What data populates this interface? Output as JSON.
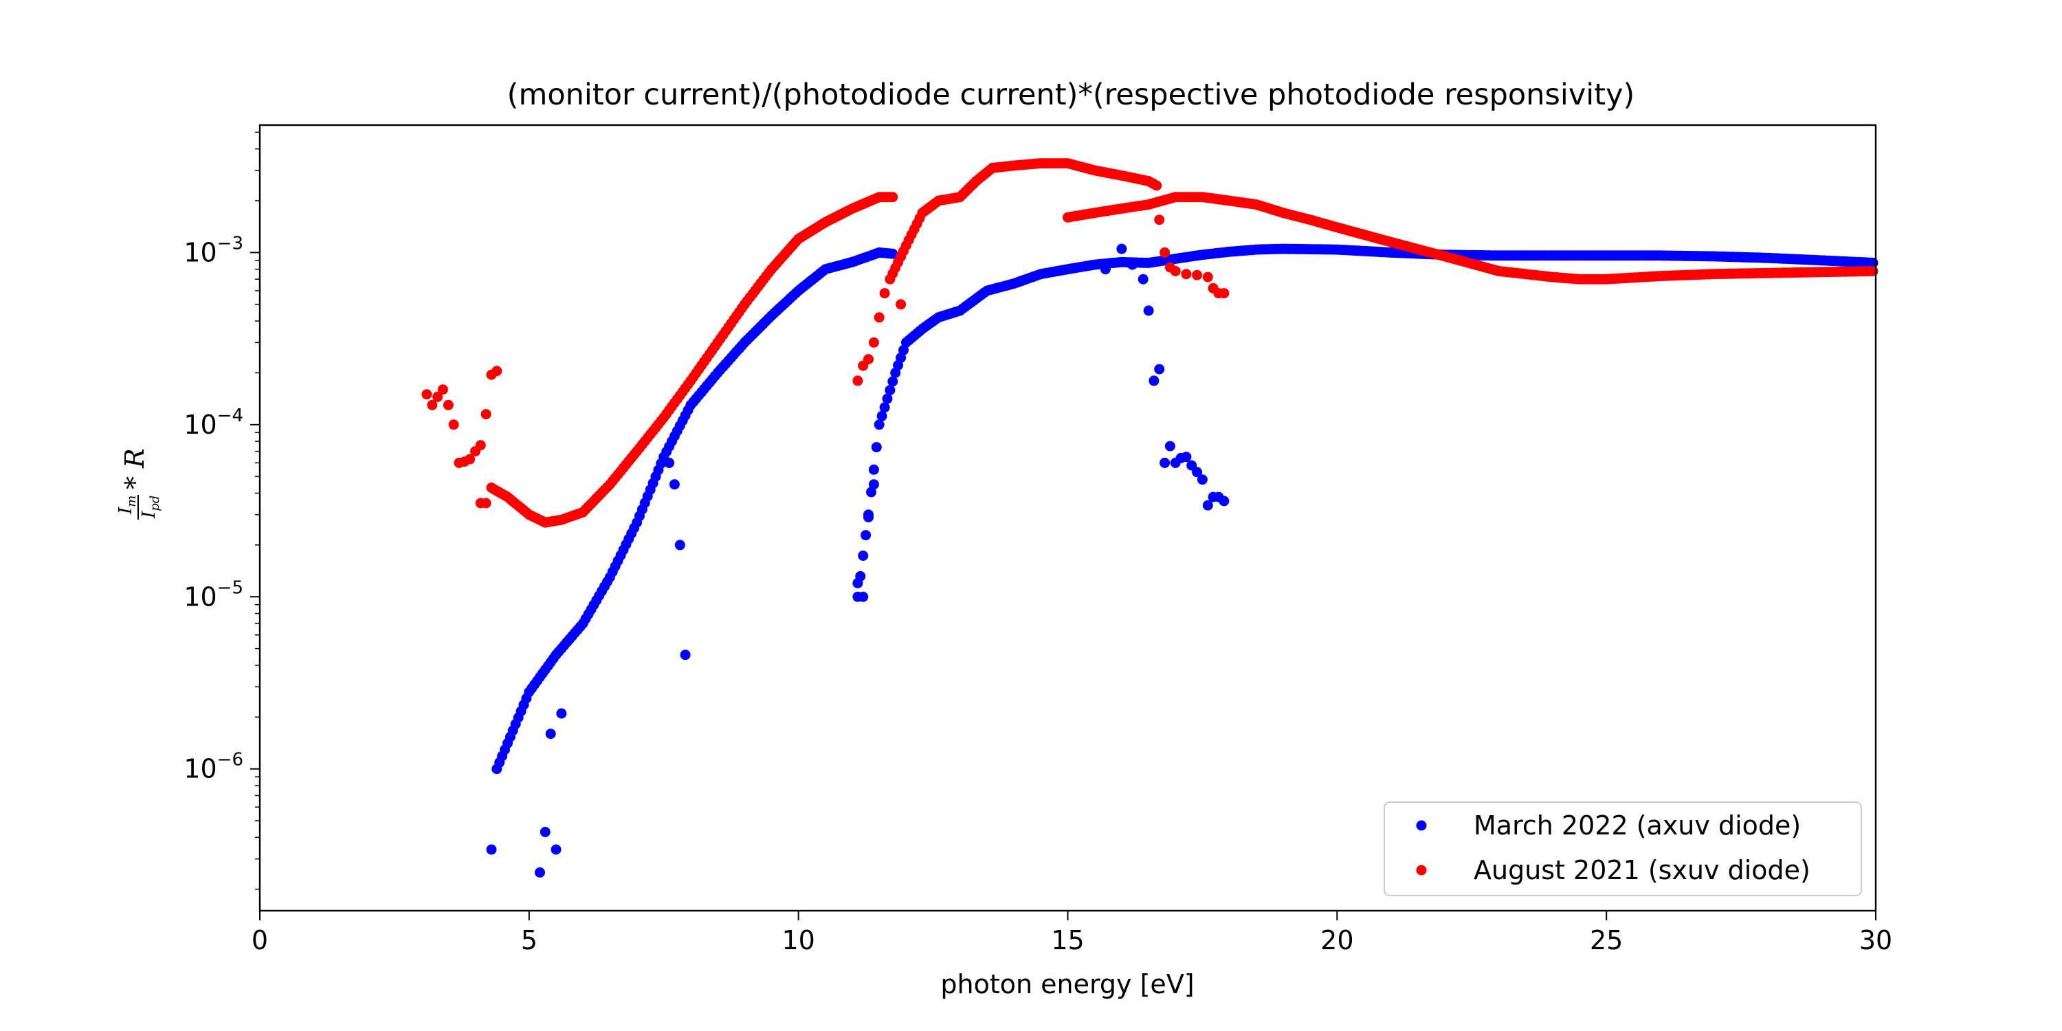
{
  "chart_data": {
    "type": "scatter",
    "title": "(monitor current)/(photodiode current)*(respective photodiode responsivity)",
    "xlabel": "photon energy [eV]",
    "ylabel": {
      "num": "I",
      "num_sub": "m",
      "den": "I",
      "den_sub": "pd",
      "tail": "* R"
    },
    "xlim": [
      0,
      30
    ],
    "ylim": [
      1.5e-07,
      0.0055
    ],
    "yscale": "log",
    "x_ticks": [
      0,
      5,
      10,
      15,
      20,
      25,
      30
    ],
    "x_tick_labels": [
      "0",
      "5",
      "10",
      "15",
      "20",
      "25",
      "30"
    ],
    "y_ticks": [
      1e-06,
      1e-05,
      0.0001,
      0.001
    ],
    "y_tick_labels": [
      {
        "base": "10",
        "exp": "−6"
      },
      {
        "base": "10",
        "exp": "−5"
      },
      {
        "base": "10",
        "exp": "−4"
      },
      {
        "base": "10",
        "exp": "−3"
      }
    ],
    "grid": false,
    "legend_position": "bottom-right",
    "series": [
      {
        "name": "March 2022 (axuv diode)",
        "color": "#0000ff",
        "segments": [
          {
            "x": [
              4.4,
              5.0,
              5.5,
              6.0,
              6.5,
              7.0,
              7.5,
              8.0,
              8.5,
              9.0,
              9.5,
              10.0,
              10.5,
              11.0,
              11.5,
              11.8
            ],
            "y": [
              1e-06,
              2.8e-06,
              4.6e-06,
              7e-06,
              1.3e-05,
              2.7e-05,
              6.5e-05,
              0.00013,
              0.0002,
              0.0003,
              0.00043,
              0.0006,
              0.0008,
              0.00088,
              0.001,
              0.00098
            ],
            "step": 0.05
          },
          {
            "x": [
              11.1,
              11.3,
              11.5,
              11.8,
              12.0,
              12.3,
              12.6,
              13.0,
              13.5,
              14.0,
              14.5,
              15.0,
              15.5,
              16.0,
              16.5,
              17.0,
              17.5,
              18.0,
              18.5,
              19.0,
              20.0,
              21.0,
              22.0,
              23.0,
              24.0,
              25.0,
              26.0,
              27.0,
              28.0,
              29.0,
              30.0
            ],
            "y": [
              1e-05,
              3e-05,
              0.0001,
              0.0002,
              0.0003,
              0.00036,
              0.00042,
              0.00046,
              0.0006,
              0.00066,
              0.00075,
              0.0008,
              0.00085,
              0.00088,
              0.00087,
              0.00092,
              0.00097,
              0.00101,
              0.00104,
              0.00105,
              0.00104,
              0.001,
              0.00097,
              0.00096,
              0.00096,
              0.00096,
              0.00096,
              0.00095,
              0.00093,
              0.0009,
              0.00087
            ],
            "step": 0.05
          }
        ],
        "points": [
          [
            4.3,
            3.4e-07
          ],
          [
            5.2,
            2.5e-07
          ],
          [
            5.3,
            4.3e-07
          ],
          [
            5.5,
            3.4e-07
          ],
          [
            5.4,
            1.6e-06
          ],
          [
            5.6,
            2.1e-06
          ],
          [
            7.8,
            2e-05
          ],
          [
            7.9,
            4.6e-06
          ],
          [
            7.7,
            4.5e-05
          ],
          [
            7.6,
            6e-05
          ],
          [
            11.1,
            1.2e-05
          ],
          [
            11.2,
            1e-05
          ],
          [
            11.3,
            2.9e-05
          ],
          [
            11.4,
            4.5e-05
          ],
          [
            15.7,
            0.0008
          ],
          [
            16.0,
            0.00105
          ],
          [
            16.2,
            0.00085
          ],
          [
            16.4,
            0.0007
          ],
          [
            16.5,
            0.00046
          ],
          [
            16.6,
            0.00018
          ],
          [
            16.7,
            0.00021
          ],
          [
            16.8,
            6e-05
          ],
          [
            16.9,
            7.5e-05
          ],
          [
            17.0,
            6e-05
          ],
          [
            17.1,
            6.4e-05
          ],
          [
            17.2,
            6.5e-05
          ],
          [
            17.3,
            5.8e-05
          ],
          [
            17.4,
            5.3e-05
          ],
          [
            17.5,
            4.8e-05
          ],
          [
            17.6,
            3.4e-05
          ],
          [
            17.7,
            3.8e-05
          ],
          [
            17.8,
            3.8e-05
          ],
          [
            17.9,
            3.6e-05
          ]
        ]
      },
      {
        "name": "August 2021 (sxuv diode)",
        "color": "#ff0000",
        "segments": [
          {
            "x": [
              4.3,
              4.6,
              5.0,
              5.3,
              5.6,
              6.0,
              6.5,
              7.0,
              7.5,
              8.0,
              8.5,
              9.0,
              9.5,
              10.0,
              10.5,
              11.0,
              11.5,
              11.8
            ],
            "y": [
              4.3e-05,
              3.8e-05,
              3e-05,
              2.7e-05,
              2.8e-05,
              3.1e-05,
              4.5e-05,
              7e-05,
              0.00011,
              0.00018,
              0.0003,
              0.0005,
              0.0008,
              0.0012,
              0.0015,
              0.0018,
              0.0021,
              0.0021
            ],
            "step": 0.05
          },
          {
            "x": [
              11.7,
              12.0,
              12.3,
              12.6,
              13.0,
              13.3,
              13.6,
              14.0,
              14.5,
              15.0,
              15.5,
              16.0,
              16.5,
              16.7
            ],
            "y": [
              0.0007,
              0.0011,
              0.0017,
              0.002,
              0.0021,
              0.0026,
              0.0031,
              0.0032,
              0.0033,
              0.0033,
              0.003,
              0.0028,
              0.0026,
              0.0024
            ],
            "step": 0.05
          },
          {
            "x": [
              15.0,
              15.5,
              16.0,
              16.5,
              17.0,
              17.5,
              18.0,
              18.5,
              19.0,
              19.5,
              20.0,
              21.0,
              22.0,
              23.0,
              24.0,
              24.5,
              25.0,
              26.0,
              27.0,
              28.0,
              29.0,
              30.0
            ],
            "y": [
              0.0016,
              0.0017,
              0.0018,
              0.0019,
              0.0021,
              0.0021,
              0.002,
              0.0019,
              0.0017,
              0.00155,
              0.0014,
              0.00115,
              0.00095,
              0.00078,
              0.00072,
              0.0007,
              0.0007,
              0.00073,
              0.00075,
              0.00076,
              0.00077,
              0.00078
            ],
            "step": 0.05
          }
        ],
        "points": [
          [
            3.1,
            0.00015
          ],
          [
            3.2,
            0.00013
          ],
          [
            3.3,
            0.000145
          ],
          [
            3.4,
            0.00016
          ],
          [
            3.5,
            0.00013
          ],
          [
            3.6,
            0.0001
          ],
          [
            3.7,
            6e-05
          ],
          [
            3.8,
            6.1e-05
          ],
          [
            3.9,
            6.3e-05
          ],
          [
            4.0,
            7e-05
          ],
          [
            4.1,
            7.6e-05
          ],
          [
            4.1,
            3.5e-05
          ],
          [
            4.2,
            3.5e-05
          ],
          [
            4.2,
            0.000115
          ],
          [
            4.3,
            0.000195
          ],
          [
            4.4,
            0.000205
          ],
          [
            11.1,
            0.00018
          ],
          [
            11.2,
            0.00022
          ],
          [
            11.3,
            0.00024
          ],
          [
            11.4,
            0.0003
          ],
          [
            11.5,
            0.00042
          ],
          [
            11.6,
            0.00058
          ],
          [
            11.9,
            0.0005
          ],
          [
            16.7,
            0.00155
          ],
          [
            16.8,
            0.001
          ],
          [
            16.9,
            0.00082
          ],
          [
            17.0,
            0.00078
          ],
          [
            17.2,
            0.00075
          ],
          [
            17.4,
            0.00074
          ],
          [
            17.6,
            0.00072
          ],
          [
            17.7,
            0.00062
          ],
          [
            17.8,
            0.00058
          ],
          [
            17.9,
            0.00058
          ]
        ]
      }
    ]
  }
}
